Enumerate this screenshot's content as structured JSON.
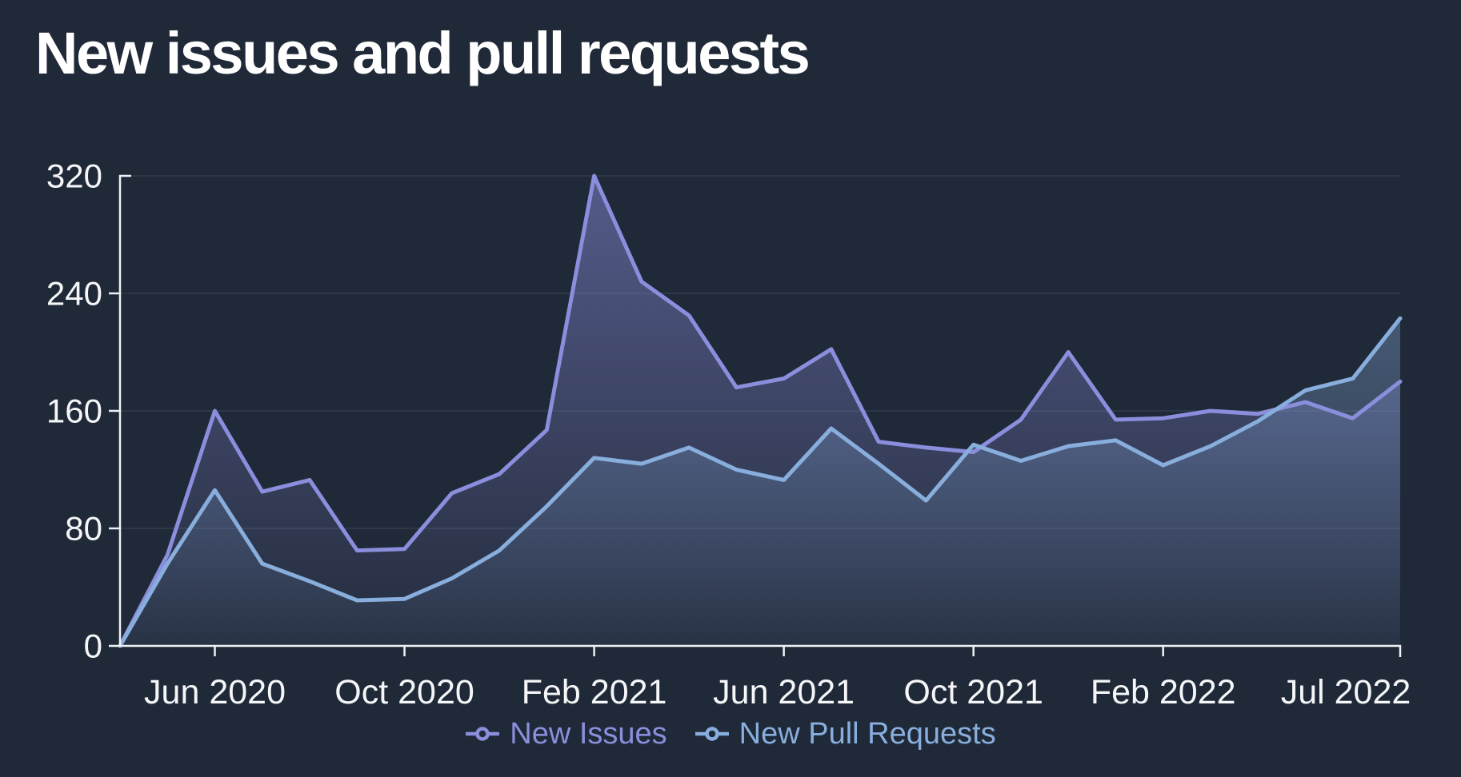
{
  "title": "New issues and pull requests",
  "colors": {
    "background": "#202938",
    "axis": "#eef1f5",
    "tick_text": "#f4f6f8",
    "gridline": "#2c3747",
    "new_issues": "#8b8edc",
    "new_pull_requests": "#88aedd"
  },
  "legend": {
    "items": [
      {
        "label": "New Issues",
        "color": "#8b8edc"
      },
      {
        "label": "New Pull Requests",
        "color": "#88aedd"
      }
    ]
  },
  "chart_data": {
    "type": "area",
    "title": "New issues and pull requests",
    "xlabel": "",
    "ylabel": "",
    "ylim": [
      0,
      320
    ],
    "y_ticks": [
      0,
      80,
      160,
      240,
      320
    ],
    "grid": "horizontal",
    "legend_position": "bottom",
    "categories": [
      "Apr 2020",
      "May 2020",
      "Jun 2020",
      "Jul 2020",
      "Aug 2020",
      "Sep 2020",
      "Oct 2020",
      "Nov 2020",
      "Dec 2020",
      "Jan 2021",
      "Feb 2021",
      "Mar 2021",
      "Apr 2021",
      "May 2021",
      "Jun 2021",
      "Jul 2021",
      "Aug 2021",
      "Sep 2021",
      "Oct 2021",
      "Nov 2021",
      "Dec 2021",
      "Jan 2022",
      "Feb 2022",
      "Mar 2022",
      "Apr 2022",
      "May 2022",
      "Jun 2022",
      "Jul 2022"
    ],
    "x_ticks": [
      {
        "index": 2,
        "label": "Jun 2020"
      },
      {
        "index": 6,
        "label": "Oct 2020"
      },
      {
        "index": 10,
        "label": "Feb 2021"
      },
      {
        "index": 14,
        "label": "Jun 2021"
      },
      {
        "index": 18,
        "label": "Oct 2021"
      },
      {
        "index": 22,
        "label": "Feb 2022"
      },
      {
        "index": 27,
        "label": "Jul 2022",
        "label_dx": -68
      }
    ],
    "series": [
      {
        "name": "New Issues",
        "color": "#8b8edc",
        "values": [
          0,
          62,
          160,
          105,
          113,
          65,
          66,
          104,
          117,
          147,
          320,
          248,
          225,
          176,
          182,
          202,
          139,
          135,
          132,
          154,
          200,
          154,
          155,
          160,
          158,
          166,
          155,
          180
        ]
      },
      {
        "name": "New Pull Requests",
        "color": "#88aedd",
        "values": [
          0,
          56,
          106,
          56,
          44,
          31,
          32,
          46,
          65,
          95,
          128,
          124,
          135,
          120,
          113,
          148,
          124,
          99,
          137,
          126,
          136,
          140,
          123,
          136,
          153,
          174,
          182,
          223
        ]
      }
    ]
  }
}
